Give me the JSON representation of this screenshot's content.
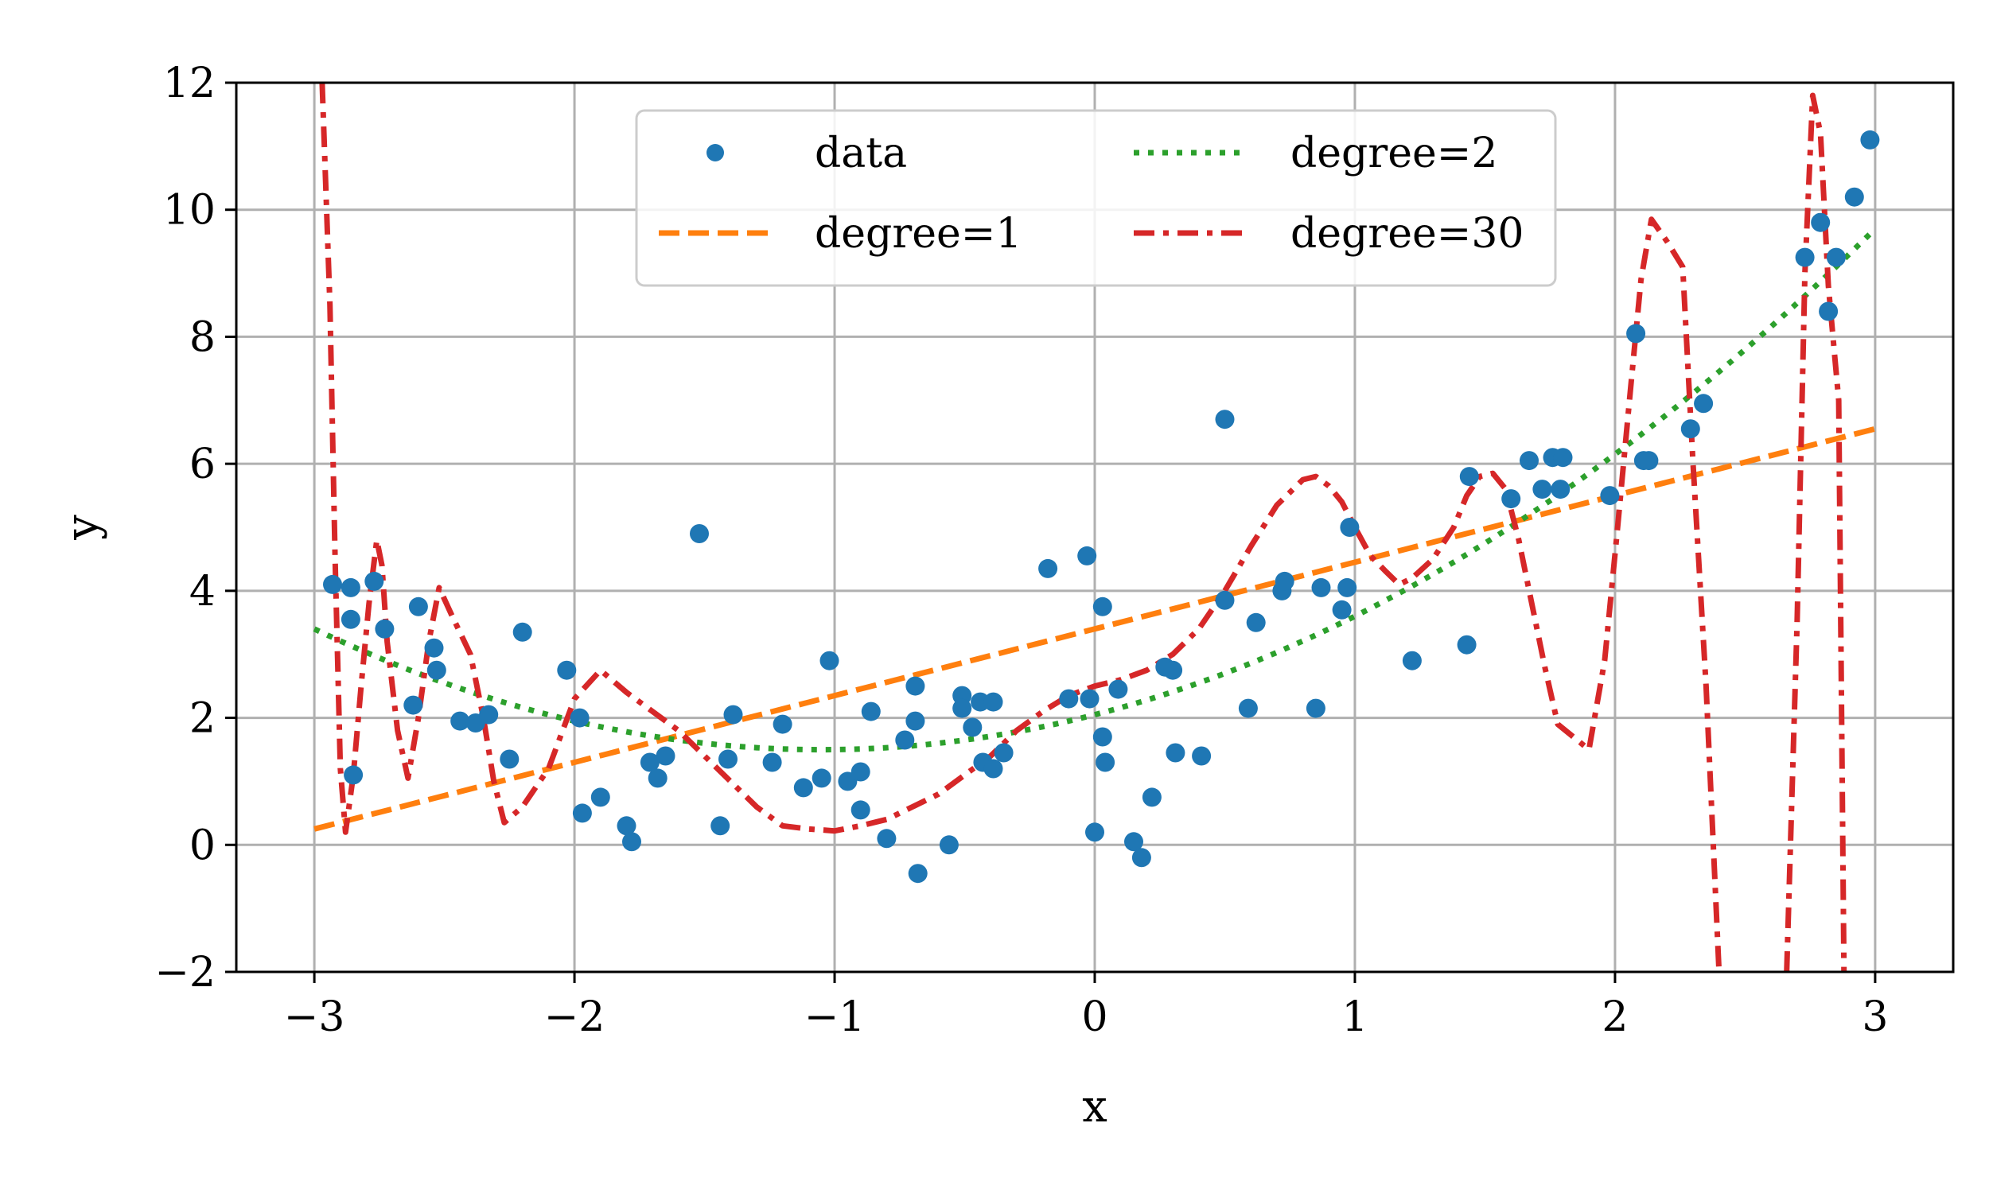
{
  "chart_data": {
    "type": "scatter",
    "xlabel": "x",
    "ylabel": "y",
    "xlim": [
      -3.3,
      3.3
    ],
    "ylim": [
      -2,
      12
    ],
    "xticks": [
      -3,
      -2,
      -1,
      0,
      1,
      2,
      3
    ],
    "yticks": [
      -2,
      0,
      2,
      4,
      6,
      8,
      10,
      12
    ],
    "xtick_labels": [
      "−3",
      "−2",
      "−1",
      "0",
      "1",
      "2",
      "3"
    ],
    "ytick_labels": [
      "−2",
      "0",
      "2",
      "4",
      "6",
      "8",
      "10",
      "12"
    ],
    "grid": true,
    "legend": {
      "placement": "upper-center",
      "columns": 2
    },
    "colors": {
      "data": "#1f77b4",
      "degree1": "#ff7f0e",
      "degree2": "#2ca02c",
      "degree30": "#d62728"
    },
    "scatter": {
      "name": "data",
      "points": [
        [
          -2.93,
          4.1
        ],
        [
          -2.86,
          4.05
        ],
        [
          -2.86,
          3.55
        ],
        [
          -2.85,
          1.1
        ],
        [
          -2.77,
          4.15
        ],
        [
          -2.73,
          3.4
        ],
        [
          -2.62,
          2.2
        ],
        [
          -2.6,
          3.75
        ],
        [
          -2.54,
          3.1
        ],
        [
          -2.53,
          2.75
        ],
        [
          -2.44,
          1.95
        ],
        [
          -2.38,
          1.92
        ],
        [
          -2.33,
          2.05
        ],
        [
          -2.25,
          1.35
        ],
        [
          -2.2,
          3.35
        ],
        [
          -2.03,
          2.75
        ],
        [
          -1.98,
          2.0
        ],
        [
          -1.97,
          0.5
        ],
        [
          -1.9,
          0.75
        ],
        [
          -1.8,
          0.3
        ],
        [
          -1.78,
          0.05
        ],
        [
          -1.71,
          1.3
        ],
        [
          -1.68,
          1.05
        ],
        [
          -1.65,
          1.4
        ],
        [
          -1.52,
          4.9
        ],
        [
          -1.44,
          0.3
        ],
        [
          -1.41,
          1.35
        ],
        [
          -1.39,
          2.05
        ],
        [
          -1.24,
          1.3
        ],
        [
          -1.2,
          1.9
        ],
        [
          -1.12,
          0.9
        ],
        [
          -1.05,
          1.05
        ],
        [
          -1.02,
          2.9
        ],
        [
          -0.95,
          1.0
        ],
        [
          -0.9,
          1.15
        ],
        [
          -0.9,
          0.55
        ],
        [
          -0.86,
          2.1
        ],
        [
          -0.8,
          0.1
        ],
        [
          -0.73,
          1.65
        ],
        [
          -0.69,
          1.95
        ],
        [
          -0.69,
          2.5
        ],
        [
          -0.68,
          -0.45
        ],
        [
          -0.56,
          0.0
        ],
        [
          -0.51,
          2.35
        ],
        [
          -0.51,
          2.15
        ],
        [
          -0.47,
          1.85
        ],
        [
          -0.44,
          2.25
        ],
        [
          -0.43,
          1.3
        ],
        [
          -0.39,
          2.25
        ],
        [
          -0.39,
          1.2
        ],
        [
          -0.35,
          1.45
        ],
        [
          -0.18,
          4.35
        ],
        [
          -0.1,
          2.3
        ],
        [
          -0.03,
          4.55
        ],
        [
          -0.02,
          2.3
        ],
        [
          0.0,
          0.2
        ],
        [
          0.03,
          3.75
        ],
        [
          0.03,
          1.7
        ],
        [
          0.04,
          1.3
        ],
        [
          0.09,
          2.45
        ],
        [
          0.15,
          0.05
        ],
        [
          0.18,
          -0.2
        ],
        [
          0.22,
          0.75
        ],
        [
          0.27,
          2.8
        ],
        [
          0.3,
          2.75
        ],
        [
          0.31,
          1.45
        ],
        [
          0.41,
          1.4
        ],
        [
          0.5,
          3.85
        ],
        [
          0.5,
          6.7
        ],
        [
          0.59,
          2.15
        ],
        [
          0.62,
          3.5
        ],
        [
          0.72,
          4.0
        ],
        [
          0.73,
          4.15
        ],
        [
          0.85,
          2.15
        ],
        [
          0.87,
          4.05
        ],
        [
          0.95,
          3.7
        ],
        [
          0.97,
          4.05
        ],
        [
          0.98,
          5.0
        ],
        [
          1.22,
          2.9
        ],
        [
          1.43,
          3.15
        ],
        [
          1.44,
          5.8
        ],
        [
          1.6,
          5.45
        ],
        [
          1.67,
          6.05
        ],
        [
          1.72,
          5.6
        ],
        [
          1.76,
          6.1
        ],
        [
          1.79,
          5.6
        ],
        [
          1.8,
          6.1
        ],
        [
          1.98,
          5.5
        ],
        [
          2.08,
          8.05
        ],
        [
          2.11,
          6.05
        ],
        [
          2.13,
          6.05
        ],
        [
          2.29,
          6.55
        ],
        [
          2.34,
          6.95
        ],
        [
          2.73,
          9.25
        ],
        [
          2.79,
          9.8
        ],
        [
          2.82,
          8.4
        ],
        [
          2.85,
          9.25
        ],
        [
          2.92,
          10.2
        ],
        [
          2.98,
          11.1
        ]
      ]
    },
    "series": [
      {
        "name": "degree=1",
        "style": "dashed",
        "x": [
          -3,
          3
        ],
        "y": [
          0.25,
          6.55
        ]
      },
      {
        "name": "degree=2",
        "style": "dotted",
        "quadratic": [
          2.05,
          1.05,
          0.5
        ],
        "x_range": [
          -3,
          3
        ]
      },
      {
        "name": "degree=30",
        "style": "dashdot",
        "points": [
          [
            -2.97,
            12.0
          ],
          [
            -2.94,
            8.5
          ],
          [
            -2.92,
            4.5
          ],
          [
            -2.9,
            1.2
          ],
          [
            -2.88,
            0.2
          ],
          [
            -2.85,
            1.1
          ],
          [
            -2.82,
            2.5
          ],
          [
            -2.79,
            3.8
          ],
          [
            -2.76,
            4.8
          ],
          [
            -2.74,
            4.4
          ],
          [
            -2.72,
            3.2
          ],
          [
            -2.68,
            1.8
          ],
          [
            -2.64,
            1.05
          ],
          [
            -2.6,
            2.0
          ],
          [
            -2.56,
            3.2
          ],
          [
            -2.52,
            4.05
          ],
          [
            -2.47,
            3.6
          ],
          [
            -2.4,
            3.0
          ],
          [
            -2.35,
            2.0
          ],
          [
            -2.31,
            1.0
          ],
          [
            -2.27,
            0.35
          ],
          [
            -2.2,
            0.6
          ],
          [
            -2.1,
            1.2
          ],
          [
            -2.0,
            2.3
          ],
          [
            -1.9,
            2.75
          ],
          [
            -1.8,
            2.4
          ],
          [
            -1.7,
            2.1
          ],
          [
            -1.6,
            1.8
          ],
          [
            -1.5,
            1.4
          ],
          [
            -1.4,
            1.0
          ],
          [
            -1.3,
            0.6
          ],
          [
            -1.2,
            0.3
          ],
          [
            -1.1,
            0.25
          ],
          [
            -1.0,
            0.22
          ],
          [
            -0.9,
            0.3
          ],
          [
            -0.8,
            0.4
          ],
          [
            -0.7,
            0.6
          ],
          [
            -0.6,
            0.8
          ],
          [
            -0.5,
            1.1
          ],
          [
            -0.4,
            1.4
          ],
          [
            -0.3,
            1.8
          ],
          [
            -0.2,
            2.1
          ],
          [
            -0.1,
            2.35
          ],
          [
            0.0,
            2.5
          ],
          [
            0.1,
            2.6
          ],
          [
            0.2,
            2.75
          ],
          [
            0.3,
            3.0
          ],
          [
            0.4,
            3.4
          ],
          [
            0.5,
            4.0
          ],
          [
            0.6,
            4.7
          ],
          [
            0.7,
            5.35
          ],
          [
            0.8,
            5.75
          ],
          [
            0.85,
            5.8
          ],
          [
            0.9,
            5.65
          ],
          [
            0.95,
            5.4
          ],
          [
            1.0,
            5.0
          ],
          [
            1.06,
            4.55
          ],
          [
            1.12,
            4.3
          ],
          [
            1.17,
            4.1
          ],
          [
            1.22,
            4.2
          ],
          [
            1.3,
            4.5
          ],
          [
            1.38,
            5.0
          ],
          [
            1.43,
            5.5
          ],
          [
            1.48,
            5.8
          ],
          [
            1.53,
            5.85
          ],
          [
            1.58,
            5.6
          ],
          [
            1.63,
            4.8
          ],
          [
            1.68,
            3.8
          ],
          [
            1.73,
            2.8
          ],
          [
            1.78,
            1.9
          ],
          [
            1.84,
            1.7
          ],
          [
            1.9,
            1.5
          ],
          [
            1.96,
            2.9
          ],
          [
            2.01,
            5.0
          ],
          [
            2.06,
            7.2
          ],
          [
            2.1,
            8.9
          ],
          [
            2.14,
            9.85
          ],
          [
            2.2,
            9.5
          ],
          [
            2.26,
            9.1
          ],
          [
            2.3,
            6.0
          ],
          [
            2.35,
            2.5
          ],
          [
            2.4,
            -2.0
          ]
        ],
        "points_2": [
          [
            2.66,
            -2.0
          ],
          [
            2.7,
            3.5
          ],
          [
            2.73,
            9.0
          ],
          [
            2.76,
            11.8
          ],
          [
            2.79,
            11.2
          ],
          [
            2.82,
            8.8
          ],
          [
            2.86,
            7.0
          ],
          [
            2.88,
            -2.0
          ]
        ]
      }
    ]
  }
}
